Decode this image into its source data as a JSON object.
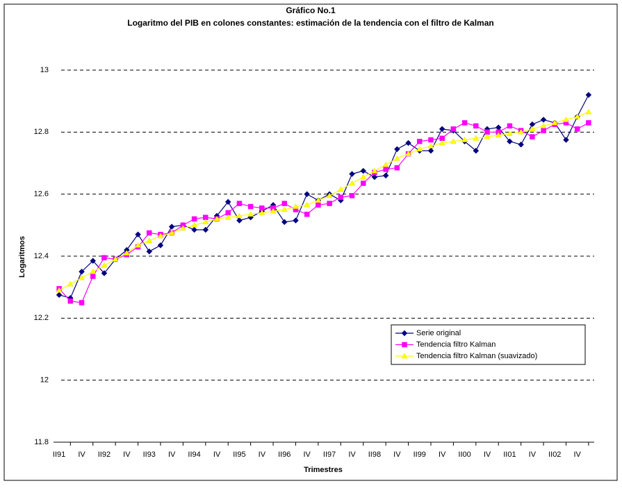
{
  "chart_data": {
    "type": "line",
    "title": "Gráfico No.1",
    "subtitle": "Logaritmo del PIB en colones constantes:  estimación de la tendencia con el filtro de Kalman",
    "x_label": "Trimestres",
    "y_label": "Logaritmos",
    "categories": [
      "II91",
      null,
      "IV",
      null,
      "II92",
      null,
      "IV",
      null,
      "II93",
      null,
      "IV",
      null,
      "II94",
      null,
      "IV",
      null,
      "II95",
      null,
      "IV",
      null,
      "II96",
      null,
      "IV",
      null,
      "II97",
      null,
      "IV",
      null,
      "II98",
      null,
      "IV",
      null,
      "II99",
      null,
      "IV",
      null,
      "II00",
      null,
      "IV",
      null,
      "II01",
      null,
      "IV",
      null,
      "II02",
      null,
      "IV",
      null
    ],
    "series": [
      {
        "name": "Serie original",
        "color": "#000080",
        "marker": "diamond",
        "values": [
          12.275,
          12.265,
          12.35,
          12.385,
          12.345,
          12.39,
          12.42,
          12.47,
          12.415,
          12.435,
          12.495,
          12.5,
          12.485,
          12.485,
          12.53,
          12.575,
          12.515,
          12.525,
          12.545,
          12.565,
          12.51,
          12.515,
          12.6,
          12.58,
          12.6,
          12.58,
          12.665,
          12.675,
          12.655,
          12.66,
          12.745,
          12.765,
          12.74,
          12.74,
          12.81,
          12.805,
          12.77,
          12.74,
          12.81,
          12.815,
          12.77,
          12.76,
          12.825,
          12.84,
          12.83,
          12.775,
          12.85,
          12.92
        ]
      },
      {
        "name": "Tendencia filtro Kalman",
        "color": "#ff00ff",
        "marker": "square",
        "values": [
          12.295,
          12.255,
          12.25,
          12.335,
          12.395,
          12.39,
          12.405,
          12.43,
          12.475,
          12.47,
          12.475,
          12.5,
          12.52,
          12.525,
          12.52,
          12.54,
          12.57,
          12.56,
          12.555,
          12.555,
          12.57,
          12.55,
          12.535,
          12.565,
          12.57,
          12.59,
          12.595,
          12.635,
          12.67,
          12.68,
          12.685,
          12.73,
          12.77,
          12.775,
          12.78,
          12.81,
          12.83,
          12.82,
          12.8,
          12.8,
          12.82,
          12.805,
          12.785,
          12.805,
          12.825,
          12.83,
          12.81,
          12.83
        ]
      },
      {
        "name": "Tendencia filtro Kalman (suavizado)",
        "color": "#ffff00",
        "marker": "triangle",
        "values": [
          12.29,
          12.31,
          12.33,
          12.35,
          12.37,
          12.39,
          12.41,
          12.435,
          12.45,
          12.465,
          12.475,
          12.49,
          12.5,
          12.51,
          12.52,
          12.525,
          12.53,
          12.535,
          12.54,
          12.545,
          12.55,
          12.56,
          12.565,
          12.58,
          12.595,
          12.615,
          12.635,
          12.655,
          12.675,
          12.695,
          12.715,
          12.73,
          12.745,
          12.755,
          12.765,
          12.77,
          12.775,
          12.78,
          12.785,
          12.79,
          12.795,
          12.8,
          12.81,
          12.82,
          12.83,
          12.84,
          12.85,
          12.865
        ]
      }
    ],
    "ylim": [
      11.8,
      13
    ],
    "yticks": [
      11.8,
      12,
      12.2,
      12.4,
      12.6,
      12.8,
      13
    ],
    "grid": true,
    "legend": "lower right"
  }
}
